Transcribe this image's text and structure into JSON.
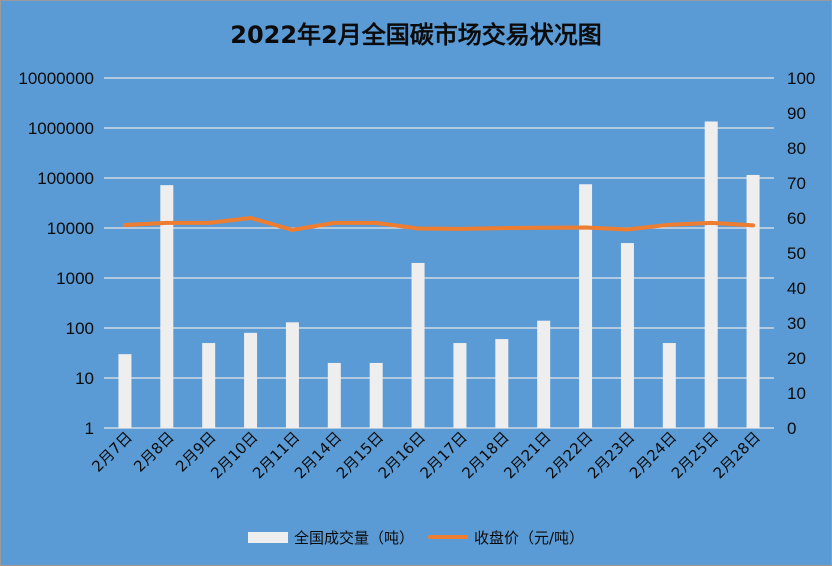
{
  "chart_data": {
    "type": "bar",
    "title": "2022年2月全国碳市场交易状况图",
    "categories": [
      "2月7日",
      "2月8日",
      "2月9日",
      "2月10日",
      "2月11日",
      "2月14日",
      "2月15日",
      "2月16日",
      "2月17日",
      "2月18日",
      "2月21日",
      "2月22日",
      "2月23日",
      "2月24日",
      "2月25日",
      "2月28日"
    ],
    "series": [
      {
        "name": "全国成交量（吨）",
        "type": "bar",
        "axis": "left",
        "color": "#eeeeee",
        "values": [
          30,
          72000,
          50,
          80,
          130,
          20,
          20,
          2000,
          50,
          60,
          140,
          75000,
          5000,
          50,
          1350000,
          115000
        ]
      },
      {
        "name": "收盘价（元/吨）",
        "type": "line",
        "axis": "right",
        "color": "#ed7d31",
        "values": [
          58.0,
          58.6,
          58.6,
          60.0,
          56.6,
          58.6,
          58.6,
          57.0,
          56.9,
          57.1,
          57.2,
          57.3,
          56.7,
          58.1,
          58.6,
          57.9
        ]
      }
    ],
    "y_left": {
      "scale": "log",
      "ylim": [
        1,
        10000000
      ],
      "ticks": [
        "1",
        "10",
        "100",
        "1000",
        "10000",
        "100000",
        "1000000",
        "10000000"
      ]
    },
    "y_right": {
      "scale": "linear",
      "ylim": [
        0,
        100
      ],
      "ticks": [
        "0",
        "10",
        "20",
        "30",
        "40",
        "50",
        "60",
        "70",
        "80",
        "90",
        "100"
      ]
    },
    "grid": true,
    "legend_position": "bottom",
    "background_color": "#5b9bd5"
  }
}
